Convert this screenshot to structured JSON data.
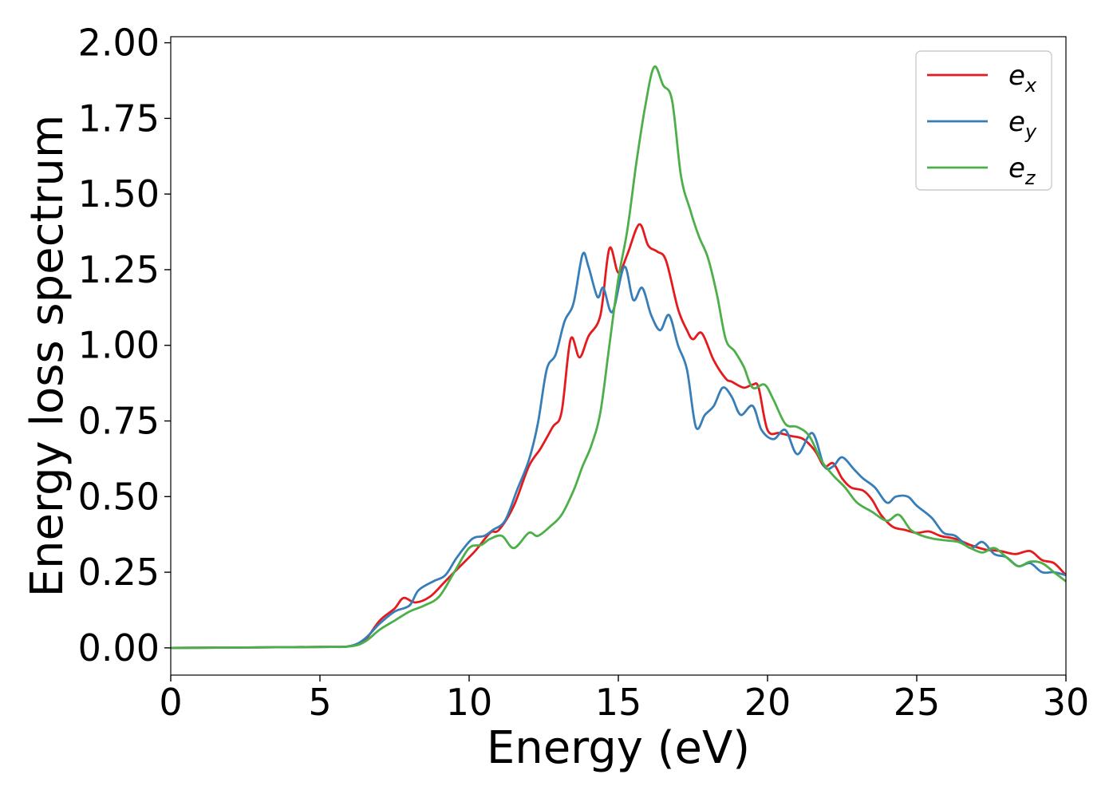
{
  "chart_data": {
    "type": "line",
    "title": "",
    "xlabel": "Energy (eV)",
    "ylabel": "Energy loss spectrum",
    "xlim": [
      0,
      30
    ],
    "ylim": [
      -0.09,
      2.02
    ],
    "xticks": [
      0,
      5,
      10,
      15,
      20,
      25,
      30
    ],
    "xtick_labels": [
      "0",
      "5",
      "10",
      "15",
      "20",
      "25",
      "30"
    ],
    "yticks": [
      0.0,
      0.25,
      0.5,
      0.75,
      1.0,
      1.25,
      1.5,
      1.75,
      2.0
    ],
    "ytick_labels": [
      "0.00",
      "0.25",
      "0.50",
      "0.75",
      "1.00",
      "1.25",
      "1.50",
      "1.75",
      "2.00"
    ],
    "grid": false,
    "legend_position": "top-right",
    "series": [
      {
        "name": "e_x",
        "legend_base": "e",
        "legend_sub": "x",
        "color": "#e41a1c",
        "points": [
          [
            0,
            0
          ],
          [
            5,
            0.003
          ],
          [
            6,
            0.006
          ],
          [
            6.5,
            0.025
          ],
          [
            7,
            0.09
          ],
          [
            7.5,
            0.13
          ],
          [
            7.8,
            0.165
          ],
          [
            8.2,
            0.15
          ],
          [
            8.7,
            0.17
          ],
          [
            9.2,
            0.22
          ],
          [
            9.7,
            0.27
          ],
          [
            10.2,
            0.32
          ],
          [
            10.7,
            0.38
          ],
          [
            11.0,
            0.39
          ],
          [
            11.5,
            0.47
          ],
          [
            12.0,
            0.6
          ],
          [
            12.4,
            0.66
          ],
          [
            12.8,
            0.73
          ],
          [
            13.1,
            0.78
          ],
          [
            13.4,
            1.02
          ],
          [
            13.7,
            0.96
          ],
          [
            14.0,
            1.03
          ],
          [
            14.4,
            1.1
          ],
          [
            14.7,
            1.32
          ],
          [
            15.0,
            1.24
          ],
          [
            15.3,
            1.3
          ],
          [
            15.7,
            1.4
          ],
          [
            16.0,
            1.33
          ],
          [
            16.3,
            1.31
          ],
          [
            16.6,
            1.28
          ],
          [
            17.0,
            1.12
          ],
          [
            17.3,
            1.05
          ],
          [
            17.5,
            1.02
          ],
          [
            17.8,
            1.04
          ],
          [
            18.2,
            0.95
          ],
          [
            18.6,
            0.89
          ],
          [
            18.8,
            0.88
          ],
          [
            19.2,
            0.86
          ],
          [
            19.5,
            0.87
          ],
          [
            19.7,
            0.86
          ],
          [
            20.0,
            0.72
          ],
          [
            20.4,
            0.71
          ],
          [
            20.8,
            0.7
          ],
          [
            21.2,
            0.69
          ],
          [
            21.6,
            0.65
          ],
          [
            21.9,
            0.6
          ],
          [
            22.2,
            0.61
          ],
          [
            22.5,
            0.56
          ],
          [
            22.8,
            0.53
          ],
          [
            23.2,
            0.52
          ],
          [
            23.5,
            0.49
          ],
          [
            23.8,
            0.44
          ],
          [
            24.2,
            0.4
          ],
          [
            24.6,
            0.39
          ],
          [
            25.0,
            0.38
          ],
          [
            25.4,
            0.385
          ],
          [
            25.8,
            0.37
          ],
          [
            26.3,
            0.36
          ],
          [
            26.8,
            0.34
          ],
          [
            27.3,
            0.325
          ],
          [
            27.8,
            0.32
          ],
          [
            28.3,
            0.31
          ],
          [
            28.8,
            0.32
          ],
          [
            29.2,
            0.29
          ],
          [
            29.6,
            0.28
          ],
          [
            30,
            0.24
          ]
        ]
      },
      {
        "name": "e_y",
        "legend_base": "e",
        "legend_sub": "y",
        "color": "#377eb8",
        "points": [
          [
            0,
            0
          ],
          [
            5,
            0.003
          ],
          [
            6,
            0.006
          ],
          [
            6.5,
            0.03
          ],
          [
            7,
            0.08
          ],
          [
            7.5,
            0.12
          ],
          [
            8.0,
            0.14
          ],
          [
            8.3,
            0.19
          ],
          [
            8.8,
            0.22
          ],
          [
            9.2,
            0.24
          ],
          [
            9.6,
            0.3
          ],
          [
            10.1,
            0.36
          ],
          [
            10.5,
            0.37
          ],
          [
            10.8,
            0.39
          ],
          [
            11.2,
            0.42
          ],
          [
            11.6,
            0.52
          ],
          [
            12.0,
            0.62
          ],
          [
            12.3,
            0.74
          ],
          [
            12.6,
            0.92
          ],
          [
            12.9,
            0.97
          ],
          [
            13.2,
            1.08
          ],
          [
            13.5,
            1.14
          ],
          [
            13.8,
            1.3
          ],
          [
            14.0,
            1.26
          ],
          [
            14.3,
            1.16
          ],
          [
            14.5,
            1.19
          ],
          [
            14.8,
            1.11
          ],
          [
            15.2,
            1.26
          ],
          [
            15.5,
            1.15
          ],
          [
            15.8,
            1.19
          ],
          [
            16.1,
            1.1
          ],
          [
            16.4,
            1.05
          ],
          [
            16.7,
            1.1
          ],
          [
            17.0,
            1.0
          ],
          [
            17.3,
            0.92
          ],
          [
            17.6,
            0.73
          ],
          [
            17.9,
            0.77
          ],
          [
            18.2,
            0.8
          ],
          [
            18.5,
            0.86
          ],
          [
            18.8,
            0.83
          ],
          [
            19.1,
            0.77
          ],
          [
            19.5,
            0.8
          ],
          [
            19.8,
            0.72
          ],
          [
            20.2,
            0.69
          ],
          [
            20.6,
            0.72
          ],
          [
            21.0,
            0.64
          ],
          [
            21.5,
            0.71
          ],
          [
            21.9,
            0.6
          ],
          [
            22.2,
            0.6
          ],
          [
            22.5,
            0.63
          ],
          [
            22.9,
            0.59
          ],
          [
            23.2,
            0.56
          ],
          [
            23.6,
            0.53
          ],
          [
            24.0,
            0.48
          ],
          [
            24.3,
            0.5
          ],
          [
            24.7,
            0.5
          ],
          [
            25.0,
            0.47
          ],
          [
            25.5,
            0.43
          ],
          [
            25.9,
            0.38
          ],
          [
            26.3,
            0.37
          ],
          [
            26.8,
            0.33
          ],
          [
            27.2,
            0.35
          ],
          [
            27.6,
            0.31
          ],
          [
            28.0,
            0.3
          ],
          [
            28.4,
            0.27
          ],
          [
            28.8,
            0.28
          ],
          [
            29.2,
            0.25
          ],
          [
            29.6,
            0.25
          ],
          [
            30,
            0.24
          ]
        ]
      },
      {
        "name": "e_z",
        "legend_base": "e",
        "legend_sub": "z",
        "color": "#4daf4a",
        "points": [
          [
            0,
            0
          ],
          [
            5,
            0.003
          ],
          [
            6,
            0.005
          ],
          [
            6.5,
            0.02
          ],
          [
            7,
            0.06
          ],
          [
            7.5,
            0.09
          ],
          [
            8.0,
            0.12
          ],
          [
            8.5,
            0.14
          ],
          [
            9.0,
            0.17
          ],
          [
            9.5,
            0.25
          ],
          [
            10.0,
            0.33
          ],
          [
            10.4,
            0.34
          ],
          [
            10.7,
            0.36
          ],
          [
            11.1,
            0.37
          ],
          [
            11.5,
            0.33
          ],
          [
            12.0,
            0.38
          ],
          [
            12.3,
            0.37
          ],
          [
            12.7,
            0.4
          ],
          [
            13.1,
            0.44
          ],
          [
            13.5,
            0.52
          ],
          [
            13.8,
            0.6
          ],
          [
            14.1,
            0.67
          ],
          [
            14.4,
            0.78
          ],
          [
            14.7,
            1.0
          ],
          [
            15.0,
            1.22
          ],
          [
            15.3,
            1.38
          ],
          [
            15.6,
            1.6
          ],
          [
            15.9,
            1.79
          ],
          [
            16.2,
            1.92
          ],
          [
            16.5,
            1.86
          ],
          [
            16.8,
            1.81
          ],
          [
            17.1,
            1.56
          ],
          [
            17.4,
            1.45
          ],
          [
            17.7,
            1.36
          ],
          [
            18.0,
            1.29
          ],
          [
            18.3,
            1.17
          ],
          [
            18.6,
            1.02
          ],
          [
            18.9,
            0.98
          ],
          [
            19.2,
            0.93
          ],
          [
            19.5,
            0.86
          ],
          [
            19.9,
            0.87
          ],
          [
            20.2,
            0.82
          ],
          [
            20.6,
            0.74
          ],
          [
            21.0,
            0.73
          ],
          [
            21.4,
            0.7
          ],
          [
            21.8,
            0.62
          ],
          [
            22.2,
            0.57
          ],
          [
            22.6,
            0.53
          ],
          [
            23.0,
            0.48
          ],
          [
            23.5,
            0.45
          ],
          [
            24.0,
            0.42
          ],
          [
            24.4,
            0.44
          ],
          [
            24.8,
            0.39
          ],
          [
            25.2,
            0.37
          ],
          [
            25.6,
            0.36
          ],
          [
            26.0,
            0.355
          ],
          [
            26.4,
            0.35
          ],
          [
            26.8,
            0.33
          ],
          [
            27.2,
            0.315
          ],
          [
            27.6,
            0.33
          ],
          [
            28.0,
            0.3
          ],
          [
            28.4,
            0.27
          ],
          [
            28.8,
            0.285
          ],
          [
            29.2,
            0.28
          ],
          [
            29.6,
            0.25
          ],
          [
            30,
            0.22
          ]
        ]
      }
    ]
  }
}
